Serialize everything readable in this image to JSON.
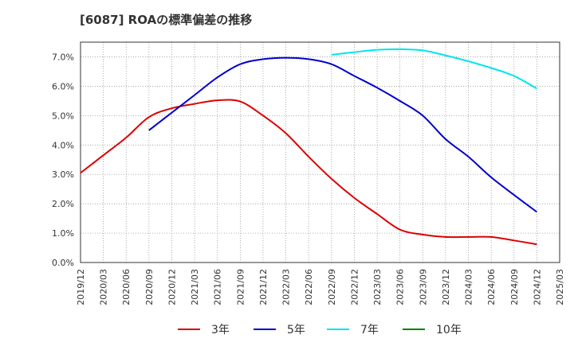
{
  "chart_data": {
    "type": "line",
    "title": "[6087]  ROAの標準偏差の推移",
    "x_ticks": [
      "2019/12",
      "2020/03",
      "2020/06",
      "2020/09",
      "2020/12",
      "2021/03",
      "2021/06",
      "2021/09",
      "2021/12",
      "2022/03",
      "2022/06",
      "2022/09",
      "2022/12",
      "2023/03",
      "2023/06",
      "2023/09",
      "2023/12",
      "2024/03",
      "2024/06",
      "2024/09",
      "2024/12",
      "2025/03"
    ],
    "y_ticks": [
      "0.0%",
      "1.0%",
      "2.0%",
      "3.0%",
      "4.0%",
      "5.0%",
      "6.0%",
      "7.0%"
    ],
    "ylim": [
      0,
      7.5
    ],
    "grid": true,
    "legend_position": "bottom",
    "series": [
      {
        "name": "3年",
        "color": "#dd0000",
        "x": [
          "2019/12",
          "2020/03",
          "2020/06",
          "2020/09",
          "2020/12",
          "2021/03",
          "2021/06",
          "2021/09",
          "2021/12",
          "2022/03",
          "2022/06",
          "2022/09",
          "2022/12",
          "2023/03",
          "2023/06",
          "2023/09",
          "2023/12",
          "2024/03",
          "2024/06",
          "2024/09",
          "2024/12"
        ],
        "values": [
          3.05,
          3.65,
          4.25,
          4.95,
          5.25,
          5.4,
          5.52,
          5.48,
          5.0,
          4.4,
          3.6,
          2.85,
          2.2,
          1.65,
          1.12,
          0.95,
          0.87,
          0.87,
          0.87,
          0.75,
          0.62
        ]
      },
      {
        "name": "5年",
        "color": "#0000cc",
        "x": [
          "2020/09",
          "2020/12",
          "2021/03",
          "2021/06",
          "2021/09",
          "2021/12",
          "2022/03",
          "2022/06",
          "2022/09",
          "2022/12",
          "2023/03",
          "2023/06",
          "2023/09",
          "2023/12",
          "2024/03",
          "2024/06",
          "2024/09",
          "2024/12"
        ],
        "values": [
          4.5,
          5.1,
          5.7,
          6.3,
          6.75,
          6.92,
          6.97,
          6.92,
          6.75,
          6.35,
          5.95,
          5.5,
          5.0,
          4.2,
          3.6,
          2.9,
          2.3,
          1.72
        ]
      },
      {
        "name": "7年",
        "color": "#00e5ee",
        "x": [
          "2022/09",
          "2022/12",
          "2023/03",
          "2023/06",
          "2023/09",
          "2023/12",
          "2024/03",
          "2024/06",
          "2024/09",
          "2024/12"
        ],
        "values": [
          7.07,
          7.16,
          7.24,
          7.26,
          7.22,
          7.05,
          6.85,
          6.62,
          6.35,
          5.92
        ]
      },
      {
        "name": "10年",
        "color": "#008000",
        "x": [],
        "values": []
      }
    ]
  }
}
